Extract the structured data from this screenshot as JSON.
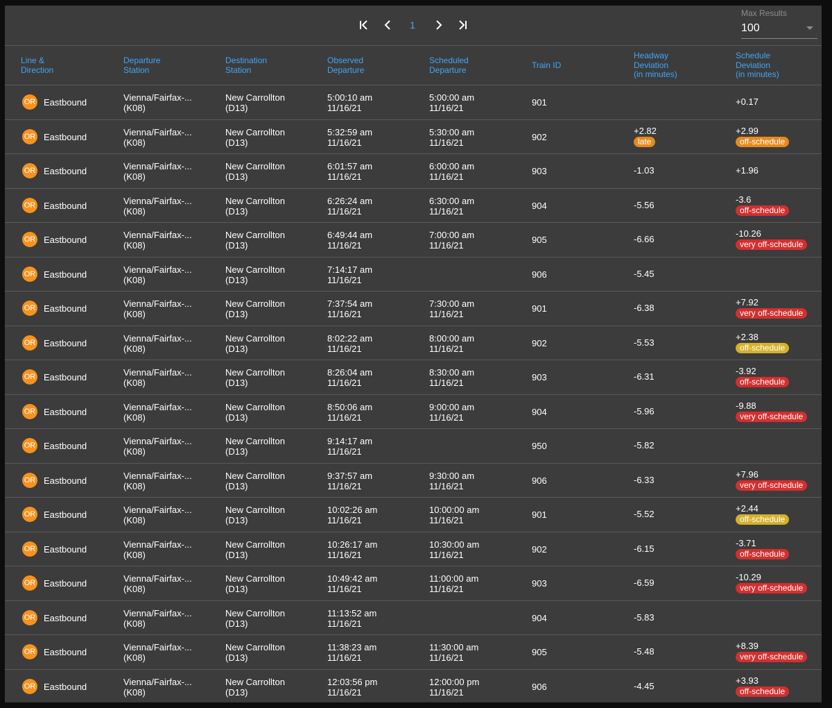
{
  "pagination": {
    "current_page": "1"
  },
  "max_results": {
    "label": "Max Results",
    "value": "100"
  },
  "columns": {
    "line": [
      "Line &",
      "Direction"
    ],
    "departure": [
      "Departure",
      "Station"
    ],
    "destination": [
      "Destination",
      "Station"
    ],
    "observed": [
      "Observed",
      "Departure"
    ],
    "scheduled": [
      "Scheduled",
      "Departure"
    ],
    "train": [
      "Train ID"
    ],
    "headway": [
      "Headway",
      "Deviation",
      "(in minutes)"
    ],
    "schedule_dev": [
      "Schedule",
      "Deviation",
      "(in minutes)"
    ]
  },
  "status_colors": {
    "late": "#e58a1e",
    "off-schedule (yellow)": "#d4b12a",
    "off-schedule (red)": "#d32f2f",
    "very off-schedule": "#d32f2f",
    "line OR": "#f7921e"
  },
  "rows": [
    {
      "line": "OR",
      "dir": "Eastbound",
      "dep_name": "Vienna/Fairfax-...",
      "dep_code": "(K08)",
      "dest_name": "New Carrollton",
      "dest_code": "(D13)",
      "obs_time": "5:00:10 am",
      "obs_date": "11/16/21",
      "sch_time": "5:00:00 am",
      "sch_date": "11/16/21",
      "train": "901",
      "headway": "",
      "head_badge": "",
      "head_color": "",
      "sdev": "+0.17",
      "sdev_badge": "",
      "sdev_color": ""
    },
    {
      "line": "OR",
      "dir": "Eastbound",
      "dep_name": "Vienna/Fairfax-...",
      "dep_code": "(K08)",
      "dest_name": "New Carrollton",
      "dest_code": "(D13)",
      "obs_time": "5:32:59 am",
      "obs_date": "11/16/21",
      "sch_time": "5:30:00 am",
      "sch_date": "11/16/21",
      "train": "902",
      "headway": "+2.82",
      "head_badge": "late",
      "head_color": "#e58a1e",
      "sdev": "+2.99",
      "sdev_badge": "off-schedule",
      "sdev_color": "#e58a1e"
    },
    {
      "line": "OR",
      "dir": "Eastbound",
      "dep_name": "Vienna/Fairfax-...",
      "dep_code": "(K08)",
      "dest_name": "New Carrollton",
      "dest_code": "(D13)",
      "obs_time": "6:01:57 am",
      "obs_date": "11/16/21",
      "sch_time": "6:00:00 am",
      "sch_date": "11/16/21",
      "train": "903",
      "headway": "-1.03",
      "head_badge": "",
      "head_color": "",
      "sdev": "+1.96",
      "sdev_badge": "",
      "sdev_color": ""
    },
    {
      "line": "OR",
      "dir": "Eastbound",
      "dep_name": "Vienna/Fairfax-...",
      "dep_code": "(K08)",
      "dest_name": "New Carrollton",
      "dest_code": "(D13)",
      "obs_time": "6:26:24 am",
      "obs_date": "11/16/21",
      "sch_time": "6:30:00 am",
      "sch_date": "11/16/21",
      "train": "904",
      "headway": "-5.56",
      "head_badge": "",
      "head_color": "",
      "sdev": "-3.6",
      "sdev_badge": "off-schedule",
      "sdev_color": "#d32f2f"
    },
    {
      "line": "OR",
      "dir": "Eastbound",
      "dep_name": "Vienna/Fairfax-...",
      "dep_code": "(K08)",
      "dest_name": "New Carrollton",
      "dest_code": "(D13)",
      "obs_time": "6:49:44 am",
      "obs_date": "11/16/21",
      "sch_time": "7:00:00 am",
      "sch_date": "11/16/21",
      "train": "905",
      "headway": "-6.66",
      "head_badge": "",
      "head_color": "",
      "sdev": "-10.26",
      "sdev_badge": "very off-schedule",
      "sdev_color": "#d32f2f"
    },
    {
      "line": "OR",
      "dir": "Eastbound",
      "dep_name": "Vienna/Fairfax-...",
      "dep_code": "(K08)",
      "dest_name": "New Carrollton",
      "dest_code": "(D13)",
      "obs_time": "7:14:17 am",
      "obs_date": "11/16/21",
      "sch_time": "",
      "sch_date": "",
      "train": "906",
      "headway": "-5.45",
      "head_badge": "",
      "head_color": "",
      "sdev": "",
      "sdev_badge": "",
      "sdev_color": ""
    },
    {
      "line": "OR",
      "dir": "Eastbound",
      "dep_name": "Vienna/Fairfax-...",
      "dep_code": "(K08)",
      "dest_name": "New Carrollton",
      "dest_code": "(D13)",
      "obs_time": "7:37:54 am",
      "obs_date": "11/16/21",
      "sch_time": "7:30:00 am",
      "sch_date": "11/16/21",
      "train": "901",
      "headway": "-6.38",
      "head_badge": "",
      "head_color": "",
      "sdev": "+7.92",
      "sdev_badge": "very off-schedule",
      "sdev_color": "#d32f2f"
    },
    {
      "line": "OR",
      "dir": "Eastbound",
      "dep_name": "Vienna/Fairfax-...",
      "dep_code": "(K08)",
      "dest_name": "New Carrollton",
      "dest_code": "(D13)",
      "obs_time": "8:02:22 am",
      "obs_date": "11/16/21",
      "sch_time": "8:00:00 am",
      "sch_date": "11/16/21",
      "train": "902",
      "headway": "-5.53",
      "head_badge": "",
      "head_color": "",
      "sdev": "+2.38",
      "sdev_badge": "off-schedule",
      "sdev_color": "#d4b12a"
    },
    {
      "line": "OR",
      "dir": "Eastbound",
      "dep_name": "Vienna/Fairfax-...",
      "dep_code": "(K08)",
      "dest_name": "New Carrollton",
      "dest_code": "(D13)",
      "obs_time": "8:26:04 am",
      "obs_date": "11/16/21",
      "sch_time": "8:30:00 am",
      "sch_date": "11/16/21",
      "train": "903",
      "headway": "-6.31",
      "head_badge": "",
      "head_color": "",
      "sdev": "-3.92",
      "sdev_badge": "off-schedule",
      "sdev_color": "#d32f2f"
    },
    {
      "line": "OR",
      "dir": "Eastbound",
      "dep_name": "Vienna/Fairfax-...",
      "dep_code": "(K08)",
      "dest_name": "New Carrollton",
      "dest_code": "(D13)",
      "obs_time": "8:50:06 am",
      "obs_date": "11/16/21",
      "sch_time": "9:00:00 am",
      "sch_date": "11/16/21",
      "train": "904",
      "headway": "-5.96",
      "head_badge": "",
      "head_color": "",
      "sdev": "-9.88",
      "sdev_badge": "very off-schedule",
      "sdev_color": "#d32f2f"
    },
    {
      "line": "OR",
      "dir": "Eastbound",
      "dep_name": "Vienna/Fairfax-...",
      "dep_code": "(K08)",
      "dest_name": "New Carrollton",
      "dest_code": "(D13)",
      "obs_time": "9:14:17 am",
      "obs_date": "11/16/21",
      "sch_time": "",
      "sch_date": "",
      "train": "950",
      "headway": "-5.82",
      "head_badge": "",
      "head_color": "",
      "sdev": "",
      "sdev_badge": "",
      "sdev_color": ""
    },
    {
      "line": "OR",
      "dir": "Eastbound",
      "dep_name": "Vienna/Fairfax-...",
      "dep_code": "(K08)",
      "dest_name": "New Carrollton",
      "dest_code": "(D13)",
      "obs_time": "9:37:57 am",
      "obs_date": "11/16/21",
      "sch_time": "9:30:00 am",
      "sch_date": "11/16/21",
      "train": "906",
      "headway": "-6.33",
      "head_badge": "",
      "head_color": "",
      "sdev": "+7.96",
      "sdev_badge": "very off-schedule",
      "sdev_color": "#d32f2f"
    },
    {
      "line": "OR",
      "dir": "Eastbound",
      "dep_name": "Vienna/Fairfax-...",
      "dep_code": "(K08)",
      "dest_name": "New Carrollton",
      "dest_code": "(D13)",
      "obs_time": "10:02:26 am",
      "obs_date": "11/16/21",
      "sch_time": "10:00:00 am",
      "sch_date": "11/16/21",
      "train": "901",
      "headway": "-5.52",
      "head_badge": "",
      "head_color": "",
      "sdev": "+2.44",
      "sdev_badge": "off-schedule",
      "sdev_color": "#d4b12a"
    },
    {
      "line": "OR",
      "dir": "Eastbound",
      "dep_name": "Vienna/Fairfax-...",
      "dep_code": "(K08)",
      "dest_name": "New Carrollton",
      "dest_code": "(D13)",
      "obs_time": "10:26:17 am",
      "obs_date": "11/16/21",
      "sch_time": "10:30:00 am",
      "sch_date": "11/16/21",
      "train": "902",
      "headway": "-6.15",
      "head_badge": "",
      "head_color": "",
      "sdev": "-3.71",
      "sdev_badge": "off-schedule",
      "sdev_color": "#d32f2f"
    },
    {
      "line": "OR",
      "dir": "Eastbound",
      "dep_name": "Vienna/Fairfax-...",
      "dep_code": "(K08)",
      "dest_name": "New Carrollton",
      "dest_code": "(D13)",
      "obs_time": "10:49:42 am",
      "obs_date": "11/16/21",
      "sch_time": "11:00:00 am",
      "sch_date": "11/16/21",
      "train": "903",
      "headway": "-6.59",
      "head_badge": "",
      "head_color": "",
      "sdev": "-10.29",
      "sdev_badge": "very off-schedule",
      "sdev_color": "#d32f2f"
    },
    {
      "line": "OR",
      "dir": "Eastbound",
      "dep_name": "Vienna/Fairfax-...",
      "dep_code": "(K08)",
      "dest_name": "New Carrollton",
      "dest_code": "(D13)",
      "obs_time": "11:13:52 am",
      "obs_date": "11/16/21",
      "sch_time": "",
      "sch_date": "",
      "train": "904",
      "headway": "-5.83",
      "head_badge": "",
      "head_color": "",
      "sdev": "",
      "sdev_badge": "",
      "sdev_color": ""
    },
    {
      "line": "OR",
      "dir": "Eastbound",
      "dep_name": "Vienna/Fairfax-...",
      "dep_code": "(K08)",
      "dest_name": "New Carrollton",
      "dest_code": "(D13)",
      "obs_time": "11:38:23 am",
      "obs_date": "11/16/21",
      "sch_time": "11:30:00 am",
      "sch_date": "11/16/21",
      "train": "905",
      "headway": "-5.48",
      "head_badge": "",
      "head_color": "",
      "sdev": "+8.39",
      "sdev_badge": "very off-schedule",
      "sdev_color": "#d32f2f"
    },
    {
      "line": "OR",
      "dir": "Eastbound",
      "dep_name": "Vienna/Fairfax-...",
      "dep_code": "(K08)",
      "dest_name": "New Carrollton",
      "dest_code": "(D13)",
      "obs_time": "12:03:56 pm",
      "obs_date": "11/16/21",
      "sch_time": "12:00:00 pm",
      "sch_date": "11/16/21",
      "train": "906",
      "headway": "-4.45",
      "head_badge": "",
      "head_color": "",
      "sdev": "+3.93",
      "sdev_badge": "off-schedule",
      "sdev_color": "#d32f2f"
    }
  ]
}
